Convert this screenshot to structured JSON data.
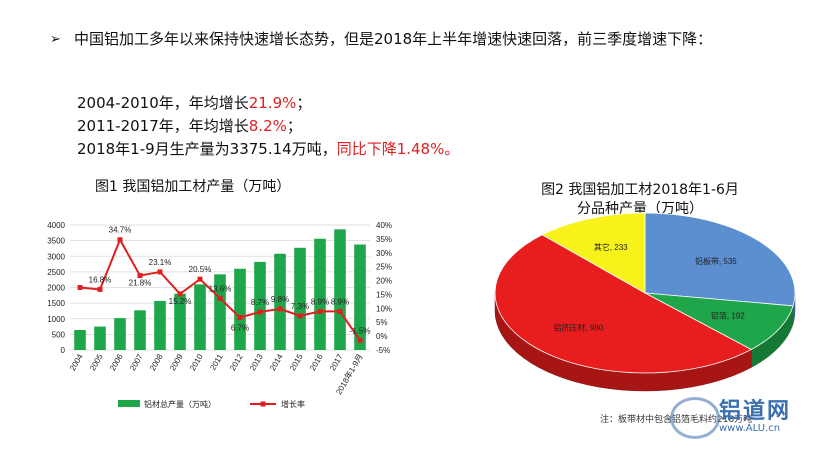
{
  "header": {
    "bullet": "➢",
    "line1": "中国铝加工多年以来保持快速增长态势，但是2018年上半年增速快速回落，前三季度增速下降：",
    "stat1_prefix": "2004-2010年，年均增长",
    "stat1_value": "21.9%",
    "stat1_suffix": "；",
    "stat2_prefix": "2011-2017年，年均增长",
    "stat2_value": "8.2%",
    "stat2_suffix": "；",
    "stat3_prefix": "2018年1-9月生产量为3375.14万吨，",
    "stat3_value": "同比下降1.48%。"
  },
  "fig1_title": "图1  我国铝加工材产量（万吨）",
  "fig2_title_line1": "图2  我国铝加工材2018年1-6月",
  "fig2_title_line2": "分品种产量（万吨）",
  "fig2_note": "注：板带材中包含铝箔毛料约218万吨",
  "logo": {
    "name": "铝道网",
    "url": "www.ALU.cn"
  },
  "chart_data": [
    {
      "type": "bar",
      "categories": [
        "2004",
        "2005",
        "2006",
        "2007",
        "2008",
        "2009",
        "2010",
        "2011",
        "2012",
        "2013",
        "2014",
        "2015",
        "2016",
        "2017",
        "2018年1-9月"
      ],
      "series": [
        {
          "name": "铝材总产量（万吨）",
          "type": "bar",
          "color": "#1fa64a",
          "values": [
            640,
            750,
            1020,
            1270,
            1570,
            1800,
            2100,
            2420,
            2600,
            2820,
            3080,
            3270,
            3560,
            3860,
            3375
          ]
        },
        {
          "name": "增长率",
          "type": "line",
          "color": "#e02020",
          "axis": "right",
          "values": [
            17.5,
            16.8,
            34.7,
            21.8,
            23.1,
            15.2,
            20.5,
            13.6,
            6.7,
            8.7,
            9.8,
            7.3,
            8.9,
            8.9,
            -1.5
          ],
          "labels": [
            "",
            "16.8%",
            "34.7%",
            "21.8%",
            "23.1%",
            "15.2%",
            "20.5%",
            "13.6%",
            "6.7%",
            "8.7%",
            "9.8%",
            "7.3%",
            "8.9%",
            "8.9%",
            "-1.5%"
          ]
        }
      ],
      "ylim": [
        0,
        4000
      ],
      "yticks": [
        "0",
        "500",
        "1000",
        "1500",
        "2000",
        "2500",
        "3000",
        "3500",
        "4000"
      ],
      "y2lim": [
        -5,
        40
      ],
      "y2ticks": [
        "-5%",
        "0%",
        "5%",
        "10%",
        "15%",
        "20%",
        "25%",
        "30%",
        "35%",
        "40%"
      ],
      "grid": true,
      "legend": "bottom"
    },
    {
      "type": "pie",
      "slices": [
        {
          "label": "铝板带",
          "value": 535,
          "text": "铝板带, 535",
          "color": "#5b8fd0"
        },
        {
          "label": "铝箔",
          "value": 192,
          "text": "铝箔, 192",
          "color": "#1fa64a"
        },
        {
          "label": "铝挤压材",
          "value": 980,
          "text": "铝挤压材, 980",
          "color": "#e81d1d"
        },
        {
          "label": "其它",
          "value": 233,
          "text": "其它, 233",
          "color": "#f6f21a"
        }
      ]
    }
  ]
}
